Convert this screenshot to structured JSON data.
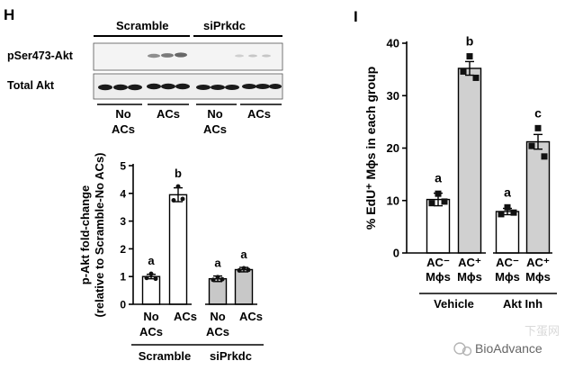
{
  "panel_h": {
    "letter": "H",
    "blot": {
      "group_labels": [
        "Scramble",
        "siPrkdc"
      ],
      "row_labels": [
        "pSer473-Akt",
        "Total Akt"
      ],
      "condition_labels": [
        [
          "No",
          "ACs"
        ],
        [
          "ACs"
        ],
        [
          "No",
          "ACs"
        ],
        [
          "ACs"
        ]
      ]
    }
  },
  "panel_i": {
    "letter": "I"
  },
  "watermark": {
    "text": "BioAdvance",
    "faint_text": "下蛋网"
  },
  "chart_data": [
    {
      "type": "bar",
      "panel": "H",
      "ylabel": [
        "p-Akt fold-change",
        "(relative to Scramble-No ACs)"
      ],
      "ylim": [
        0,
        5
      ],
      "yticks": [
        0,
        1,
        2,
        3,
        4,
        5
      ],
      "categories": [
        [
          "No",
          "ACs"
        ],
        [
          "ACs"
        ],
        [
          "No",
          "ACs"
        ],
        [
          "ACs"
        ]
      ],
      "groups": [
        {
          "label": "Scramble",
          "bars": [
            0,
            1
          ]
        },
        {
          "label": "siPrkdc",
          "bars": [
            2,
            3
          ]
        }
      ],
      "values": [
        1.0,
        3.95,
        0.92,
        1.25
      ],
      "errors": [
        0.08,
        0.25,
        0.1,
        0.08
      ],
      "points": [
        [
          1.1,
          0.95,
          0.92
        ],
        [
          4.25,
          3.75,
          3.8
        ],
        [
          0.98,
          0.88,
          0.9
        ],
        [
          1.3,
          1.22,
          1.24
        ]
      ],
      "fills": [
        "#ffffff",
        "#ffffff",
        "#c8c8c8",
        "#c8c8c8"
      ],
      "letters": [
        "a",
        "b",
        "a",
        "a"
      ]
    },
    {
      "type": "bar",
      "panel": "I",
      "ylabel": "% EdU⁺ Mϕs in each group",
      "ylim": [
        0,
        40
      ],
      "yticks": [
        0,
        10,
        20,
        30,
        40
      ],
      "categories": [
        [
          "AC⁻",
          "Mϕs"
        ],
        [
          "AC⁺",
          "Mϕs"
        ],
        [
          "AC⁻",
          "Mϕs"
        ],
        [
          "AC⁺",
          "Mϕs"
        ]
      ],
      "groups": [
        {
          "label": "Vehicle",
          "bars": [
            0,
            1
          ]
        },
        {
          "label": "Akt Inh",
          "bars": [
            2,
            3
          ]
        }
      ],
      "values": [
        10.2,
        35.2,
        7.9,
        21.2
      ],
      "errors": [
        1.2,
        1.3,
        0.6,
        1.4
      ],
      "points": [
        [
          11.3,
          9.5,
          9.8
        ],
        [
          37.5,
          34.6,
          33.4
        ],
        [
          8.7,
          7.4,
          7.7
        ],
        [
          23.8,
          20.4,
          18.4
        ]
      ],
      "fills": [
        "#ffffff",
        "#d0d0d0",
        "#ffffff",
        "#d0d0d0"
      ],
      "letters": [
        "a",
        "b",
        "a",
        "c"
      ]
    }
  ]
}
